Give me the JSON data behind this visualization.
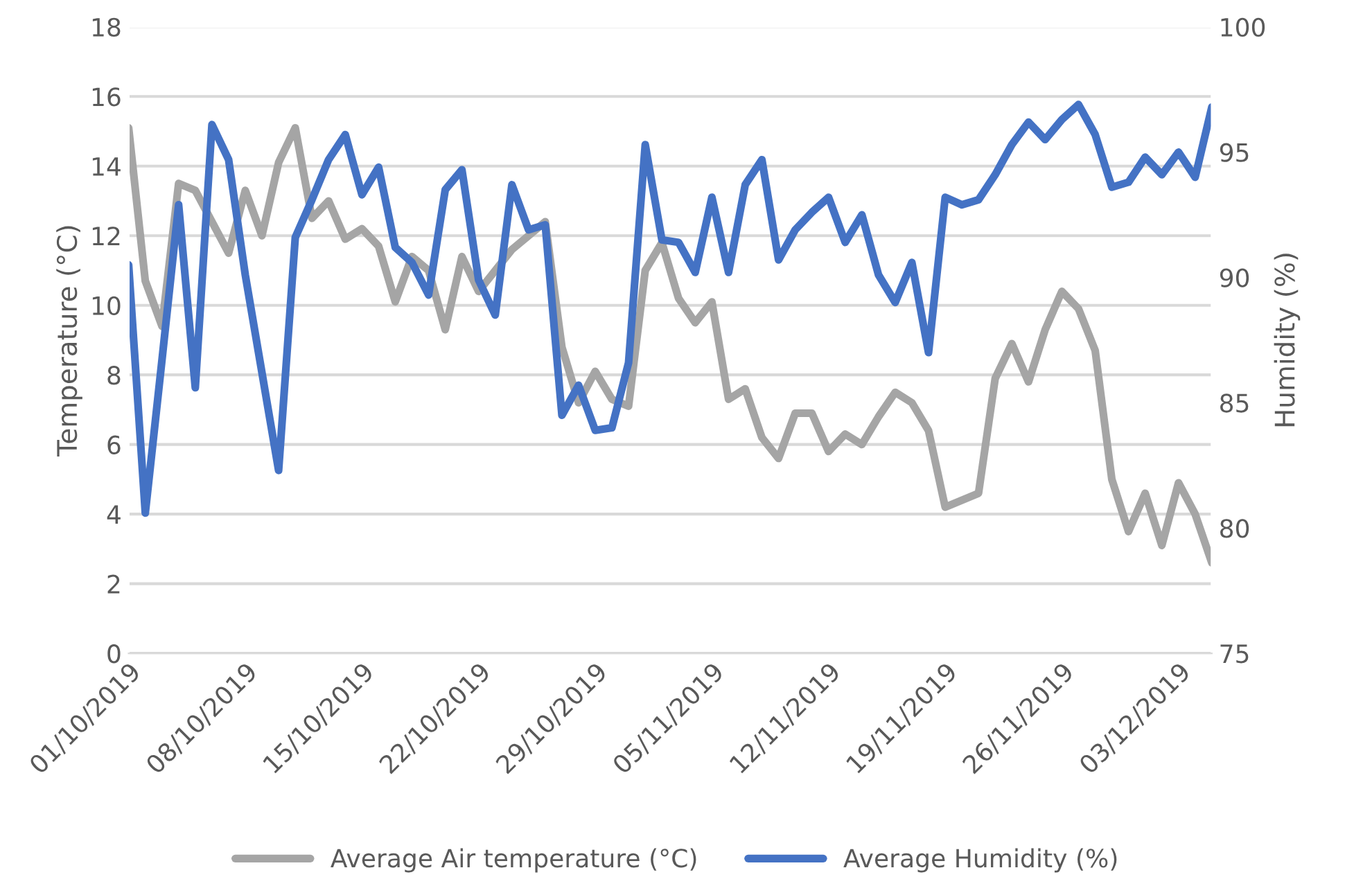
{
  "chart_data": {
    "type": "line",
    "x": [
      "2019-10-01",
      "2019-10-02",
      "2019-10-03",
      "2019-10-04",
      "2019-10-05",
      "2019-10-06",
      "2019-10-07",
      "2019-10-08",
      "2019-10-09",
      "2019-10-10",
      "2019-10-11",
      "2019-10-12",
      "2019-10-13",
      "2019-10-14",
      "2019-10-15",
      "2019-10-16",
      "2019-10-17",
      "2019-10-18",
      "2019-10-19",
      "2019-10-20",
      "2019-10-21",
      "2019-10-22",
      "2019-10-23",
      "2019-10-24",
      "2019-10-25",
      "2019-10-26",
      "2019-10-27",
      "2019-10-28",
      "2019-10-29",
      "2019-10-30",
      "2019-10-31",
      "2019-11-01",
      "2019-11-02",
      "2019-11-03",
      "2019-11-04",
      "2019-11-05",
      "2019-11-06",
      "2019-11-07",
      "2019-11-08",
      "2019-11-09",
      "2019-11-10",
      "2019-11-11",
      "2019-11-12",
      "2019-11-13",
      "2019-11-14",
      "2019-11-15",
      "2019-11-16",
      "2019-11-17",
      "2019-11-18",
      "2019-11-19",
      "2019-11-20",
      "2019-11-21",
      "2019-11-22",
      "2019-11-23",
      "2019-11-24",
      "2019-11-25",
      "2019-11-26",
      "2019-11-27",
      "2019-11-28",
      "2019-11-29",
      "2019-11-30",
      "2019-12-01",
      "2019-12-02",
      "2019-12-03",
      "2019-12-04",
      "2019-12-05"
    ],
    "series": [
      {
        "name": "Average Air temperature (°C)",
        "color": "#a5a5a5",
        "values": [
          15.1,
          10.7,
          9.4,
          13.5,
          13.3,
          12.4,
          11.5,
          13.3,
          12.0,
          14.1,
          15.1,
          12.5,
          13.0,
          11.9,
          12.2,
          11.7,
          10.1,
          11.4,
          11.0,
          9.3,
          11.4,
          10.4,
          11.0,
          11.6,
          12.0,
          12.4,
          8.8,
          7.2,
          8.1,
          7.3,
          7.1,
          11.0,
          11.8,
          10.2,
          9.5,
          10.1,
          7.3,
          7.6,
          6.2,
          5.6,
          6.9,
          6.9,
          5.8,
          6.3,
          6.0,
          6.8,
          7.5,
          7.2,
          6.4,
          4.2,
          4.4,
          4.6,
          7.9,
          8.9,
          7.8,
          9.3,
          10.4,
          9.9,
          8.7,
          5.0,
          3.5,
          4.6,
          3.1,
          4.9,
          4.0,
          2.6
        ]
      },
      {
        "name": "Average Humidity (%)",
        "color": "#4472c4",
        "axis": "y2",
        "values": [
          90.5,
          80.6,
          86.7,
          92.9,
          85.6,
          96.1,
          94.7,
          90.1,
          86.2,
          82.3,
          91.6,
          93.1,
          94.7,
          95.7,
          93.3,
          94.4,
          91.2,
          90.6,
          89.3,
          93.5,
          94.3,
          89.9,
          88.5,
          93.7,
          91.9,
          92.1,
          84.5,
          85.7,
          83.9,
          84.0,
          86.6,
          95.3,
          91.5,
          91.4,
          90.2,
          93.2,
          90.2,
          93.7,
          94.7,
          90.7,
          91.9,
          92.6,
          93.2,
          91.4,
          92.5,
          90.1,
          89.0,
          90.6,
          87.0,
          93.2,
          92.9,
          93.1,
          94.1,
          95.3,
          96.2,
          95.5,
          96.3,
          96.9,
          95.7,
          93.6,
          93.8,
          94.8,
          94.1,
          95.0,
          94.0,
          96.8
        ]
      }
    ],
    "ylabel": "Temperature (°C)",
    "y2label": "Humidity (%)",
    "ylim": [
      0,
      18
    ],
    "yticks": [
      0,
      2,
      4,
      6,
      8,
      10,
      12,
      14,
      16,
      18
    ],
    "y2lim": [
      75,
      100
    ],
    "y2ticks": [
      75,
      80,
      85,
      90,
      95,
      100
    ],
    "xlim": [
      "2019-10-01",
      "2019-12-05"
    ],
    "xticks": [
      {
        "value": "2019-10-01",
        "label": "01/10/2019"
      },
      {
        "value": "2019-10-08",
        "label": "08/10/2019"
      },
      {
        "value": "2019-10-15",
        "label": "15/10/2019"
      },
      {
        "value": "2019-10-22",
        "label": "22/10/2019"
      },
      {
        "value": "2019-10-29",
        "label": "29/10/2019"
      },
      {
        "value": "2019-11-05",
        "label": "05/11/2019"
      },
      {
        "value": "2019-11-12",
        "label": "12/11/2019"
      },
      {
        "value": "2019-11-19",
        "label": "19/11/2019"
      },
      {
        "value": "2019-11-26",
        "label": "26/11/2019"
      },
      {
        "value": "2019-12-03",
        "label": "03/12/2019"
      }
    ],
    "grid": "y",
    "legend": "bottom",
    "marker": "none",
    "line_style": "solid"
  }
}
